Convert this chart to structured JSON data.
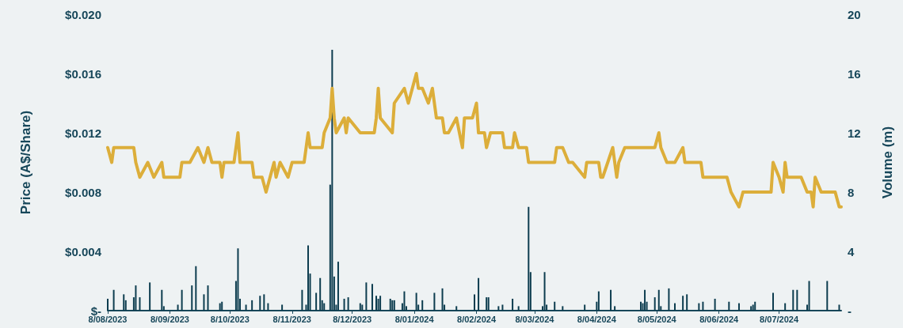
{
  "chart_data": {
    "type": "line",
    "ylabel": "Price (A$/Share)",
    "y2label": "Volume (m)",
    "xlim": [
      "2023-08-08",
      "2024-08-08"
    ],
    "xticks": [
      {
        "value": "2023-08-08",
        "label": "8/08/2023"
      },
      {
        "value": "2023-09-08",
        "label": "8/09/2023"
      },
      {
        "value": "2023-10-08",
        "label": "8/10/2023"
      },
      {
        "value": "2023-11-08",
        "label": "8/11/2023"
      },
      {
        "value": "2023-12-08",
        "label": "8/12/2023"
      },
      {
        "value": "2024-01-08",
        "label": "8/01/2024"
      },
      {
        "value": "2024-02-08",
        "label": "8/02/2024"
      },
      {
        "value": "2024-03-08",
        "label": "8/03/2024"
      },
      {
        "value": "2024-04-08",
        "label": "8/04/2024"
      },
      {
        "value": "2024-05-08",
        "label": "8/05/2024"
      },
      {
        "value": "2024-06-08",
        "label": "8/06/2024"
      },
      {
        "value": "2024-07-08",
        "label": "8/07/2024"
      }
    ],
    "ylim": [
      0,
      0.02
    ],
    "yticks": [
      {
        "value": 0,
        "label": "$-"
      },
      {
        "value": 0.004,
        "label": "$0.004"
      },
      {
        "value": 0.008,
        "label": "$0.008"
      },
      {
        "value": 0.012,
        "label": "$0.012"
      },
      {
        "value": 0.016,
        "label": "$0.016"
      },
      {
        "value": 0.02,
        "label": "$0.020"
      }
    ],
    "y2lim": [
      0,
      20
    ],
    "y2ticks": [
      {
        "value": 0,
        "label": "-"
      },
      4,
      8,
      12,
      16,
      20
    ],
    "series": [
      {
        "type": "bar",
        "axis": "y2",
        "color": "#0d3d4f",
        "x": [
          "2023-08-08",
          "2023-08-11",
          "2023-08-16",
          "2023-08-17",
          "2023-08-21",
          "2023-08-22",
          "2023-08-24",
          "2023-08-29",
          "2023-09-04",
          "2023-09-05",
          "2023-09-12",
          "2023-09-14",
          "2023-09-19",
          "2023-09-21",
          "2023-09-25",
          "2023-09-27",
          "2023-10-03",
          "2023-10-04",
          "2023-10-11",
          "2023-10-12",
          "2023-10-13",
          "2023-10-16",
          "2023-10-19",
          "2023-10-23",
          "2023-10-25",
          "2023-10-27",
          "2023-11-03",
          "2023-11-13",
          "2023-11-15",
          "2023-11-16",
          "2023-11-17",
          "2023-11-20",
          "2023-11-22",
          "2023-11-23",
          "2023-11-24",
          "2023-11-27",
          "2023-11-28",
          "2023-11-29",
          "2023-11-30",
          "2023-12-01",
          "2023-12-04",
          "2023-12-06",
          "2023-12-12",
          "2023-12-13",
          "2023-12-15",
          "2023-12-18",
          "2023-12-20",
          "2023-12-21",
          "2023-12-22",
          "2023-12-27",
          "2023-12-28",
          "2023-12-29",
          "2024-01-02",
          "2024-01-03",
          "2024-01-04",
          "2024-01-09",
          "2024-01-10",
          "2024-01-12",
          "2024-01-18",
          "2024-01-22",
          "2024-01-23",
          "2024-01-29",
          "2024-02-07",
          "2024-02-09",
          "2024-02-13",
          "2024-02-14",
          "2024-02-19",
          "2024-02-21",
          "2024-02-26",
          "2024-02-29",
          "2024-03-05",
          "2024-03-06",
          "2024-03-12",
          "2024-03-13",
          "2024-03-14",
          "2024-03-18",
          "2024-03-22",
          "2024-04-02",
          "2024-04-08",
          "2024-04-09",
          "2024-04-15",
          "2024-04-17",
          "2024-04-30",
          "2024-05-01",
          "2024-05-02",
          "2024-05-03",
          "2024-05-07",
          "2024-05-09",
          "2024-05-10",
          "2024-05-14",
          "2024-05-17",
          "2024-05-21",
          "2024-05-23",
          "2024-05-29",
          "2024-05-31",
          "2024-06-06",
          "2024-06-13",
          "2024-06-18",
          "2024-06-24",
          "2024-06-25",
          "2024-06-26",
          "2024-07-05",
          "2024-07-11",
          "2024-07-15",
          "2024-07-17",
          "2024-07-22",
          "2024-07-23",
          "2024-08-01",
          "2024-08-07"
        ],
        "values": [
          0.8,
          1.4,
          1.1,
          0.7,
          0.9,
          1.7,
          0.9,
          1.9,
          1.4,
          0.3,
          0.4,
          1.4,
          1.7,
          3.0,
          1.1,
          1.7,
          0.5,
          0.6,
          2.0,
          4.2,
          0.8,
          0.4,
          0.7,
          1.0,
          1.1,
          0.5,
          0.4,
          1.4,
          0.4,
          4.4,
          2.5,
          1.2,
          2.2,
          0.7,
          0.5,
          8.5,
          17.6,
          2.3,
          0.4,
          3.3,
          0.8,
          0.9,
          0.5,
          0.4,
          1.9,
          1.8,
          1.0,
          0.8,
          1.0,
          0.8,
          0.7,
          0.7,
          0.5,
          1.3,
          0.3,
          1.2,
          0.4,
          0.7,
          1.2,
          1.5,
          0.4,
          0.3,
          1.1,
          2.2,
          0.9,
          0.9,
          0.3,
          0.4,
          0.8,
          0.3,
          7.0,
          2.6,
          0.3,
          2.6,
          0.4,
          0.6,
          0.3,
          0.4,
          0.6,
          1.3,
          1.4,
          0.3,
          0.6,
          0.5,
          1.4,
          0.6,
          0.9,
          1.4,
          0.3,
          1.5,
          0.5,
          1.0,
          1.1,
          0.5,
          0.6,
          0.8,
          0.6,
          0.5,
          0.3,
          0.4,
          0.6,
          1.2,
          0.5,
          1.4,
          1.4,
          0.4,
          2.0,
          2.0,
          0.4
        ]
      },
      {
        "color": "#dcae3a",
        "x": [
          "2023-08-08",
          "2023-08-10",
          "2023-08-11",
          "2023-08-21",
          "2023-08-22",
          "2023-08-24",
          "2023-08-28",
          "2023-08-31",
          "2023-09-04",
          "2023-09-05",
          "2023-09-13",
          "2023-09-14",
          "2023-09-18",
          "2023-09-22",
          "2023-09-25",
          "2023-09-27",
          "2023-09-29",
          "2023-10-03",
          "2023-10-04",
          "2023-10-05",
          "2023-10-10",
          "2023-10-12",
          "2023-10-13",
          "2023-10-19",
          "2023-10-20",
          "2023-10-24",
          "2023-10-26",
          "2023-10-30",
          "2023-10-31",
          "2023-11-02",
          "2023-11-06",
          "2023-11-08",
          "2023-11-14",
          "2023-11-16",
          "2023-11-17",
          "2023-11-23",
          "2023-11-24",
          "2023-11-27",
          "2023-11-28",
          "2023-11-29",
          "2023-11-30",
          "2023-12-04",
          "2023-12-05",
          "2023-12-06",
          "2023-12-12",
          "2023-12-19",
          "2023-12-20",
          "2023-12-21",
          "2023-12-22",
          "2023-12-28",
          "2023-12-29",
          "2024-01-03",
          "2024-01-05",
          "2024-01-09",
          "2024-01-10",
          "2024-01-12",
          "2024-01-15",
          "2024-01-17",
          "2024-01-19",
          "2024-01-22",
          "2024-01-23",
          "2024-01-25",
          "2024-01-29",
          "2024-02-01",
          "2024-02-02",
          "2024-02-06",
          "2024-02-08",
          "2024-02-09",
          "2024-02-12",
          "2024-02-13",
          "2024-02-15",
          "2024-02-21",
          "2024-02-22",
          "2024-02-26",
          "2024-02-27",
          "2024-02-29",
          "2024-03-04",
          "2024-03-05",
          "2024-03-18",
          "2024-03-19",
          "2024-03-22",
          "2024-03-25",
          "2024-03-27",
          "2024-04-02",
          "2024-04-03",
          "2024-04-09",
          "2024-04-10",
          "2024-04-11",
          "2024-04-16",
          "2024-04-18",
          "2024-04-19",
          "2024-04-22",
          "2024-05-07",
          "2024-05-09",
          "2024-05-10",
          "2024-05-13",
          "2024-05-17",
          "2024-05-21",
          "2024-05-22",
          "2024-05-30",
          "2024-05-31",
          "2024-06-12",
          "2024-06-14",
          "2024-06-18",
          "2024-06-20",
          "2024-07-04",
          "2024-07-05",
          "2024-07-08",
          "2024-07-10",
          "2024-07-11",
          "2024-07-12",
          "2024-07-19",
          "2024-07-22",
          "2024-07-24",
          "2024-07-25",
          "2024-07-26",
          "2024-07-29",
          "2024-08-05",
          "2024-08-07",
          "2024-08-08"
        ],
        "values": [
          0.011,
          0.01,
          0.011,
          0.011,
          0.01,
          0.009,
          0.01,
          0.009,
          0.01,
          0.009,
          0.009,
          0.01,
          0.01,
          0.011,
          0.01,
          0.011,
          0.01,
          0.01,
          0.009,
          0.01,
          0.01,
          0.012,
          0.01,
          0.01,
          0.009,
          0.009,
          0.008,
          0.01,
          0.009,
          0.01,
          0.009,
          0.01,
          0.01,
          0.012,
          0.011,
          0.011,
          0.012,
          0.013,
          0.015,
          0.013,
          0.012,
          0.013,
          0.012,
          0.013,
          0.012,
          0.012,
          0.013,
          0.015,
          0.013,
          0.012,
          0.014,
          0.015,
          0.014,
          0.016,
          0.015,
          0.015,
          0.014,
          0.015,
          0.013,
          0.013,
          0.012,
          0.012,
          0.013,
          0.011,
          0.013,
          0.013,
          0.014,
          0.012,
          0.012,
          0.011,
          0.012,
          0.012,
          0.011,
          0.011,
          0.012,
          0.011,
          0.011,
          0.01,
          0.01,
          0.011,
          0.011,
          0.01,
          0.01,
          0.009,
          0.01,
          0.01,
          0.009,
          0.009,
          0.011,
          0.009,
          0.01,
          0.011,
          0.011,
          0.012,
          0.011,
          0.01,
          0.01,
          0.011,
          0.01,
          0.01,
          0.009,
          0.009,
          0.008,
          0.007,
          0.008,
          0.008,
          0.01,
          0.009,
          0.008,
          0.01,
          0.009,
          0.009,
          0.008,
          0.008,
          0.007,
          0.009,
          0.008,
          0.008,
          0.007,
          0.007
        ]
      }
    ]
  }
}
